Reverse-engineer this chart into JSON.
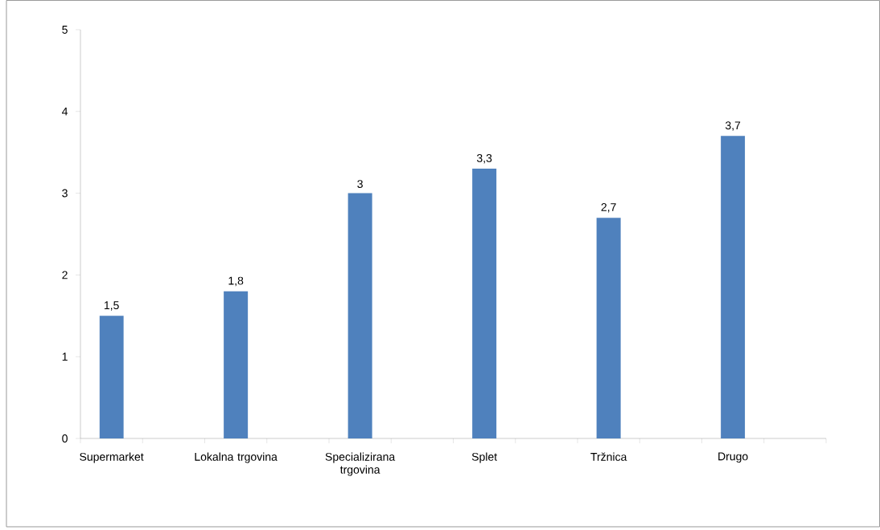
{
  "chart_data": {
    "type": "bar",
    "categories": [
      "Supermarket",
      null,
      "Lokalna trgovina",
      null,
      "Specializirana trgovina",
      null,
      "Splet",
      null,
      "Tržnica",
      null,
      "Drugo",
      null
    ],
    "values": [
      1.5,
      null,
      1.8,
      null,
      3,
      null,
      3.3,
      null,
      2.7,
      null,
      3.7,
      null
    ],
    "value_labels": [
      "1,5",
      null,
      "1,8",
      null,
      "3",
      null,
      "3,3",
      null,
      "2,7",
      null,
      "3,7",
      null
    ],
    "color": "#4f81bd",
    "ylim": [
      0,
      5
    ],
    "yticks": [
      0,
      1,
      2,
      3,
      4,
      5
    ],
    "grid": false
  }
}
